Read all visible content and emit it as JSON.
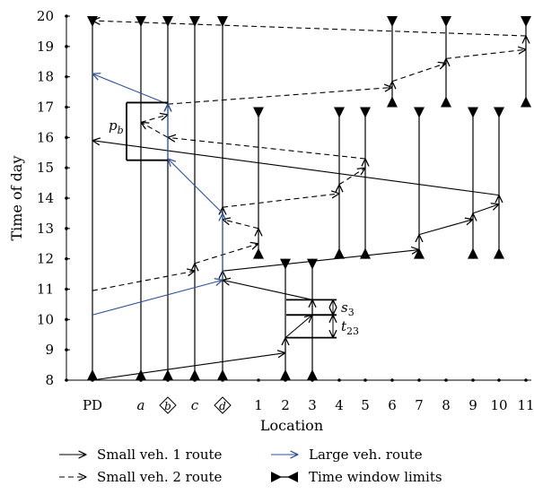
{
  "chart_data": {
    "type": "line",
    "xlabel": "Location",
    "ylabel": "Time of day",
    "categories": [
      "PD",
      "a",
      "b",
      "c",
      "d",
      "1",
      "2",
      "3",
      "4",
      "5",
      "6",
      "7",
      "8",
      "9",
      "10",
      "11"
    ],
    "circled_categories": [
      "b",
      "d"
    ],
    "italic_categories": [
      "a",
      "b",
      "c",
      "d"
    ],
    "ylim": [
      8,
      20
    ],
    "yticks": [
      "8",
      "9",
      "10",
      "11",
      "12",
      "13",
      "14",
      "15",
      "16",
      "17",
      "18",
      "19",
      "20"
    ],
    "grid": false,
    "legend_position": "bottom",
    "time_windows": [
      {
        "location": "PD",
        "from": 8,
        "to": 20
      },
      {
        "location": "a",
        "from": 8,
        "to": 20
      },
      {
        "location": "b",
        "from": 8,
        "to": 20
      },
      {
        "location": "c",
        "from": 8,
        "to": 20
      },
      {
        "location": "d",
        "from": 8,
        "to": 20
      },
      {
        "location": "1",
        "from": 12,
        "to": 17
      },
      {
        "location": "2",
        "from": 8,
        "to": 12
      },
      {
        "location": "3",
        "from": 8,
        "to": 12
      },
      {
        "location": "4",
        "from": 12,
        "to": 17
      },
      {
        "location": "5",
        "from": 12,
        "to": 17
      },
      {
        "location": "6",
        "from": 17,
        "to": 20
      },
      {
        "location": "7",
        "from": 12,
        "to": 17
      },
      {
        "location": "8",
        "from": 17,
        "to": 20
      },
      {
        "location": "9",
        "from": 12,
        "to": 17
      },
      {
        "location": "10",
        "from": 12,
        "to": 17
      },
      {
        "location": "11",
        "from": 17,
        "to": 20
      }
    ],
    "series": [
      {
        "name": "Small veh. 1 route",
        "color": "#000000",
        "style": "solid",
        "points": [
          {
            "x": "PD",
            "y": 8.0
          },
          {
            "x": "2",
            "y": 8.9
          },
          {
            "x": "2",
            "y": 9.4
          },
          {
            "x": "3",
            "y": 10.15
          },
          {
            "x": "3",
            "y": 10.65
          },
          {
            "x": "d",
            "y": 11.3
          },
          {
            "x": "d",
            "y": 11.6
          },
          {
            "x": "7",
            "y": 12.3
          },
          {
            "x": "7",
            "y": 12.8
          },
          {
            "x": "9",
            "y": 13.3
          },
          {
            "x": "9",
            "y": 13.5
          },
          {
            "x": "10",
            "y": 13.8
          },
          {
            "x": "10",
            "y": 14.1
          },
          {
            "x": "PD",
            "y": 15.9
          }
        ]
      },
      {
        "name": "Small veh. 2 route",
        "color": "#000000",
        "style": "dashed",
        "points": [
          {
            "x": "PD",
            "y": 10.95
          },
          {
            "x": "c",
            "y": 11.6
          },
          {
            "x": "c",
            "y": 11.85
          },
          {
            "x": "1",
            "y": 12.5
          },
          {
            "x": "1",
            "y": 13.0
          },
          {
            "x": "d",
            "y": 13.3
          },
          {
            "x": "d",
            "y": 13.7
          },
          {
            "x": "4",
            "y": 14.15
          },
          {
            "x": "4",
            "y": 14.45
          },
          {
            "x": "5",
            "y": 15.0
          },
          {
            "x": "5",
            "y": 15.3
          },
          {
            "x": "b",
            "y": 16.0
          },
          {
            "x": "a",
            "y": 16.5
          },
          {
            "x": "b",
            "y": 16.75
          },
          {
            "x": "b",
            "y": 17.1
          },
          {
            "x": "6",
            "y": 17.65
          },
          {
            "x": "6",
            "y": 17.85
          },
          {
            "x": "8",
            "y": 18.45
          },
          {
            "x": "8",
            "y": 18.6
          },
          {
            "x": "11",
            "y": 18.9
          },
          {
            "x": "11",
            "y": 19.35
          },
          {
            "x": "PD",
            "y": 19.85
          }
        ]
      },
      {
        "name": "Large veh. route",
        "color": "#2e4f9e",
        "style": "solid",
        "points": [
          {
            "x": "PD",
            "y": 10.15
          },
          {
            "x": "d",
            "y": 11.3
          },
          {
            "x": "d",
            "y": 13.5
          },
          {
            "x": "b",
            "y": 15.3
          },
          {
            "x": "b",
            "y": 17.1
          },
          {
            "x": "PD",
            "y": 18.1
          }
        ]
      }
    ],
    "legend": [
      {
        "label": "Small veh. 1 route",
        "style": "solid-arrow"
      },
      {
        "label": "Large veh. route",
        "style": "blue-arrow"
      },
      {
        "label": "Small veh. 2 route",
        "style": "dashed-arrow"
      },
      {
        "label": "Time window limits",
        "style": "bowtie"
      }
    ],
    "annotations": [
      {
        "label": "p",
        "subscript": "b",
        "from": 15.25,
        "to": 17.15,
        "location": "b"
      },
      {
        "label": "s",
        "subscript": "3",
        "from": 10.15,
        "to": 10.65,
        "location": "3"
      },
      {
        "label": "t",
        "subscript": "23",
        "from": 9.4,
        "to": 10.15,
        "location": "3"
      }
    ]
  }
}
